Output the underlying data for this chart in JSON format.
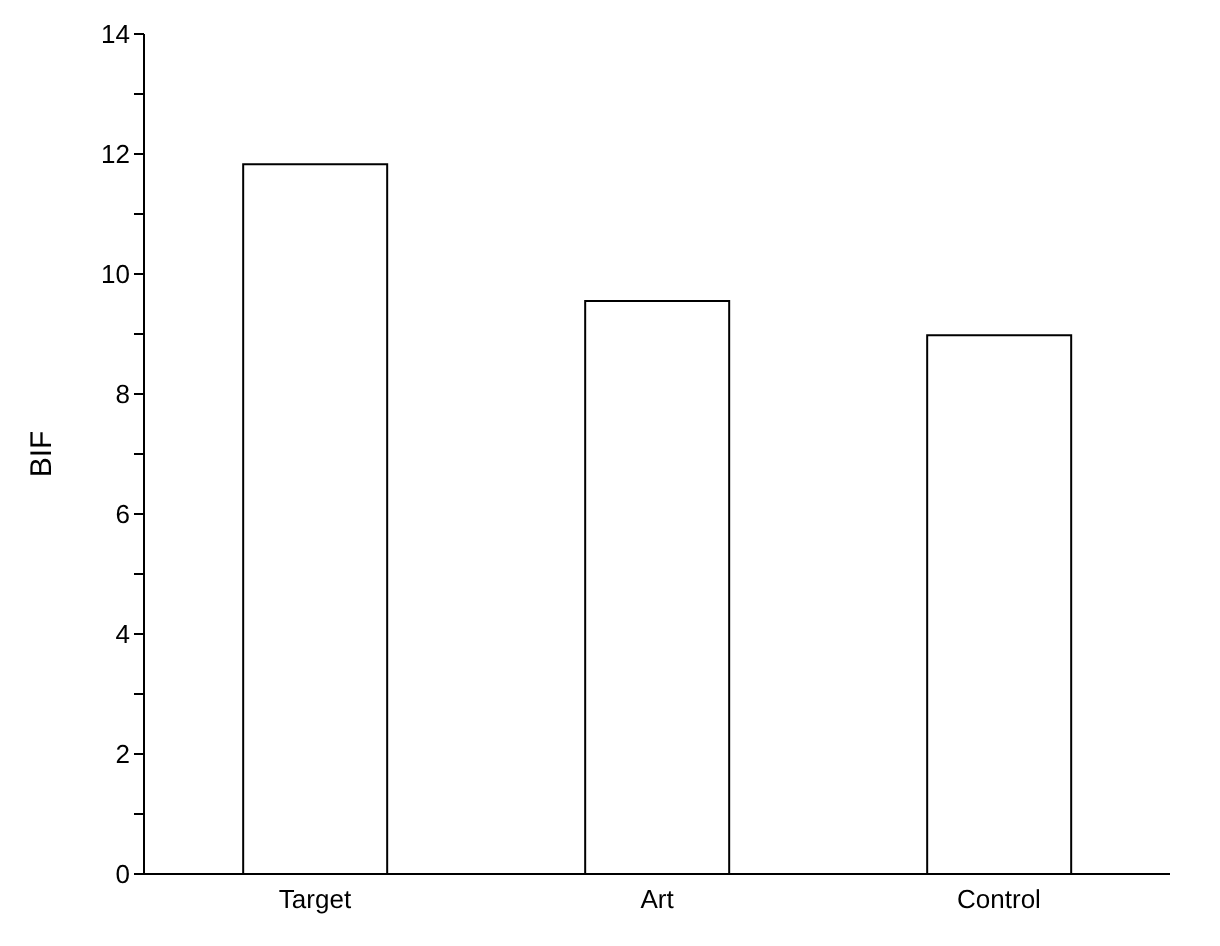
{
  "chart_data": {
    "type": "bar",
    "ylabel": "BIF",
    "categories": [
      "Target",
      "Art",
      "Control"
    ],
    "values": [
      11.83,
      9.55,
      8.98
    ],
    "color": "#ffffff",
    "ylim": [
      0,
      14
    ],
    "yticks": [
      0,
      {
        "value": 1,
        "label": null
      },
      2,
      {
        "value": 3,
        "label": null
      },
      4,
      {
        "value": 5,
        "label": null
      },
      6,
      {
        "value": 7,
        "label": null
      },
      8,
      {
        "value": 9,
        "label": null
      },
      10,
      {
        "value": 11,
        "label": null
      },
      12,
      {
        "value": 13,
        "label": null
      },
      14
    ],
    "grid": false
  }
}
